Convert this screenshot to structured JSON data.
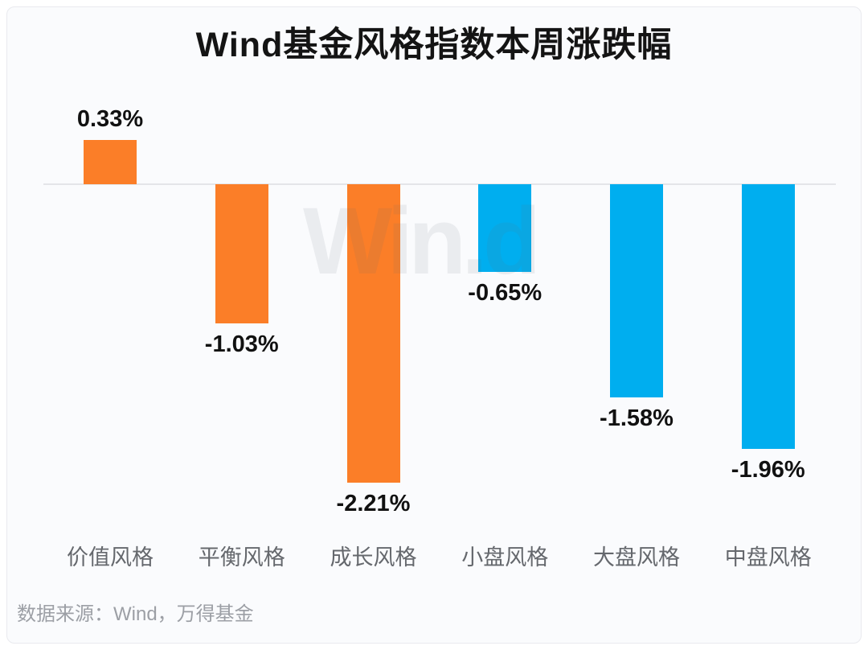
{
  "title": "Wind基金风格指数本周涨跌幅",
  "watermark": "Win.d",
  "footer": {
    "source": "数据来源：Wind，万得基金"
  },
  "colors": {
    "positive_orange": "#fb7e28",
    "blue": "#00aeef",
    "axis_line": "#e4e5e9",
    "label_text": "#111111",
    "category_text": "#65686d",
    "source_text": "#9c9fa5",
    "background": "#fafbfd"
  },
  "chart_data": {
    "type": "bar",
    "title": "Wind基金风格指数本周涨跌幅",
    "categories": [
      "价值风格",
      "平衡风格",
      "成长风格",
      "小盘风格",
      "大盘风格",
      "中盘风格"
    ],
    "values": [
      0.33,
      -1.03,
      -2.21,
      -0.65,
      -1.58,
      -1.96
    ],
    "labels": [
      "0.33%",
      "-1.03%",
      "-2.21%",
      "-0.65%",
      "-1.58%",
      "-1.96%"
    ],
    "bar_colors": [
      "#fb7e28",
      "#fb7e28",
      "#fb7e28",
      "#00aeef",
      "#00aeef",
      "#00aeef"
    ],
    "xlabel": "",
    "ylabel": "",
    "ylim": [
      -2.5,
      0.6
    ],
    "baseline": 0,
    "grid": false,
    "legend": "none",
    "value_labels_shown": true
  }
}
